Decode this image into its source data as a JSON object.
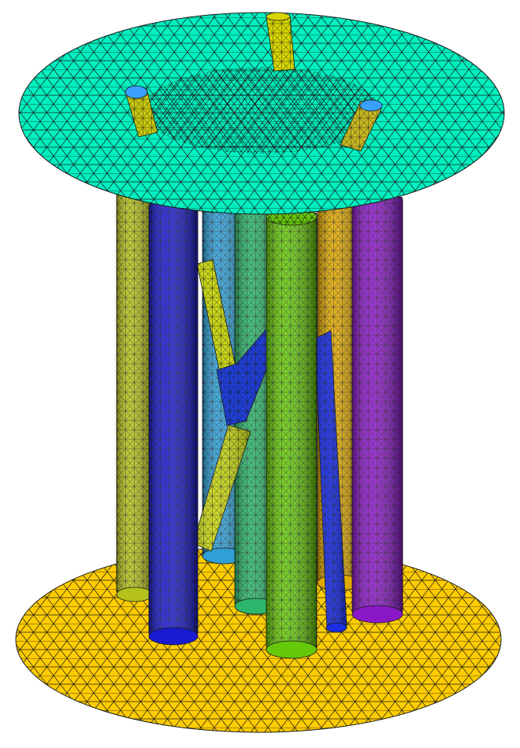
{
  "scene": {
    "background": "#ffffff",
    "mesh_line_color": "#1a1a1a",
    "disks": [
      {
        "name": "top-plate",
        "color": "#00f0c0"
      },
      {
        "name": "bottom-plate",
        "color": "#ffcc00"
      }
    ],
    "rods": [
      {
        "name": "rod-olive-left",
        "color": "#b5c21c"
      },
      {
        "name": "rod-blue-front-left",
        "color": "#1a1ad0"
      },
      {
        "name": "rod-sky-blue-back",
        "color": "#2f9fd6"
      },
      {
        "name": "rod-teal-green",
        "color": "#2db56b"
      },
      {
        "name": "rod-green-front",
        "color": "#66c80a"
      },
      {
        "name": "rod-gold-back",
        "color": "#e0a800"
      },
      {
        "name": "rod-purple-right",
        "color": "#8a18c8"
      },
      {
        "name": "rod-diagonal-yellow",
        "color": "#c9d61a"
      },
      {
        "name": "rod-diagonal-blue",
        "color": "#1f3fd8"
      },
      {
        "name": "rod-diagonal-blue-front",
        "color": "#1a2ee0"
      },
      {
        "name": "stub-yellow-top",
        "color": "#d6d600"
      },
      {
        "name": "stub-yellow-left",
        "color": "#c8c810"
      },
      {
        "name": "stub-yellow-right",
        "color": "#c8b820"
      }
    ],
    "cap_color": "#3aa0ff"
  }
}
